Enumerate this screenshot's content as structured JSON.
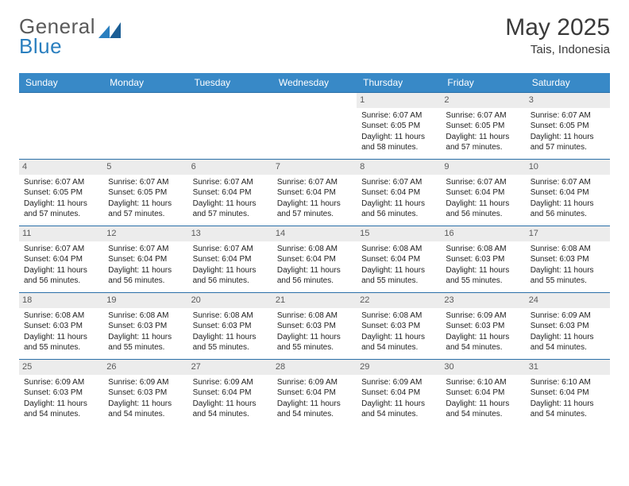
{
  "logo": {
    "text1": "General",
    "text2": "Blue"
  },
  "title": "May 2025",
  "location": "Tais, Indonesia",
  "colors": {
    "header_bg": "#3889c7",
    "header_text": "#ffffff",
    "daynum_bg": "#ececec",
    "border": "#2a6fa8",
    "body_text": "#222222",
    "logo_gray": "#5a5a5a",
    "logo_blue": "#2a7fbf"
  },
  "dow": [
    "Sunday",
    "Monday",
    "Tuesday",
    "Wednesday",
    "Thursday",
    "Friday",
    "Saturday"
  ],
  "weeks": [
    [
      {
        "n": "",
        "sr": "",
        "ss": "",
        "dl": ""
      },
      {
        "n": "",
        "sr": "",
        "ss": "",
        "dl": ""
      },
      {
        "n": "",
        "sr": "",
        "ss": "",
        "dl": ""
      },
      {
        "n": "",
        "sr": "",
        "ss": "",
        "dl": ""
      },
      {
        "n": "1",
        "sr": "6:07 AM",
        "ss": "6:05 PM",
        "dl": "11 hours and 58 minutes."
      },
      {
        "n": "2",
        "sr": "6:07 AM",
        "ss": "6:05 PM",
        "dl": "11 hours and 57 minutes."
      },
      {
        "n": "3",
        "sr": "6:07 AM",
        "ss": "6:05 PM",
        "dl": "11 hours and 57 minutes."
      }
    ],
    [
      {
        "n": "4",
        "sr": "6:07 AM",
        "ss": "6:05 PM",
        "dl": "11 hours and 57 minutes."
      },
      {
        "n": "5",
        "sr": "6:07 AM",
        "ss": "6:05 PM",
        "dl": "11 hours and 57 minutes."
      },
      {
        "n": "6",
        "sr": "6:07 AM",
        "ss": "6:04 PM",
        "dl": "11 hours and 57 minutes."
      },
      {
        "n": "7",
        "sr": "6:07 AM",
        "ss": "6:04 PM",
        "dl": "11 hours and 57 minutes."
      },
      {
        "n": "8",
        "sr": "6:07 AM",
        "ss": "6:04 PM",
        "dl": "11 hours and 56 minutes."
      },
      {
        "n": "9",
        "sr": "6:07 AM",
        "ss": "6:04 PM",
        "dl": "11 hours and 56 minutes."
      },
      {
        "n": "10",
        "sr": "6:07 AM",
        "ss": "6:04 PM",
        "dl": "11 hours and 56 minutes."
      }
    ],
    [
      {
        "n": "11",
        "sr": "6:07 AM",
        "ss": "6:04 PM",
        "dl": "11 hours and 56 minutes."
      },
      {
        "n": "12",
        "sr": "6:07 AM",
        "ss": "6:04 PM",
        "dl": "11 hours and 56 minutes."
      },
      {
        "n": "13",
        "sr": "6:07 AM",
        "ss": "6:04 PM",
        "dl": "11 hours and 56 minutes."
      },
      {
        "n": "14",
        "sr": "6:08 AM",
        "ss": "6:04 PM",
        "dl": "11 hours and 56 minutes."
      },
      {
        "n": "15",
        "sr": "6:08 AM",
        "ss": "6:04 PM",
        "dl": "11 hours and 55 minutes."
      },
      {
        "n": "16",
        "sr": "6:08 AM",
        "ss": "6:03 PM",
        "dl": "11 hours and 55 minutes."
      },
      {
        "n": "17",
        "sr": "6:08 AM",
        "ss": "6:03 PM",
        "dl": "11 hours and 55 minutes."
      }
    ],
    [
      {
        "n": "18",
        "sr": "6:08 AM",
        "ss": "6:03 PM",
        "dl": "11 hours and 55 minutes."
      },
      {
        "n": "19",
        "sr": "6:08 AM",
        "ss": "6:03 PM",
        "dl": "11 hours and 55 minutes."
      },
      {
        "n": "20",
        "sr": "6:08 AM",
        "ss": "6:03 PM",
        "dl": "11 hours and 55 minutes."
      },
      {
        "n": "21",
        "sr": "6:08 AM",
        "ss": "6:03 PM",
        "dl": "11 hours and 55 minutes."
      },
      {
        "n": "22",
        "sr": "6:08 AM",
        "ss": "6:03 PM",
        "dl": "11 hours and 54 minutes."
      },
      {
        "n": "23",
        "sr": "6:09 AM",
        "ss": "6:03 PM",
        "dl": "11 hours and 54 minutes."
      },
      {
        "n": "24",
        "sr": "6:09 AM",
        "ss": "6:03 PM",
        "dl": "11 hours and 54 minutes."
      }
    ],
    [
      {
        "n": "25",
        "sr": "6:09 AM",
        "ss": "6:03 PM",
        "dl": "11 hours and 54 minutes."
      },
      {
        "n": "26",
        "sr": "6:09 AM",
        "ss": "6:03 PM",
        "dl": "11 hours and 54 minutes."
      },
      {
        "n": "27",
        "sr": "6:09 AM",
        "ss": "6:04 PM",
        "dl": "11 hours and 54 minutes."
      },
      {
        "n": "28",
        "sr": "6:09 AM",
        "ss": "6:04 PM",
        "dl": "11 hours and 54 minutes."
      },
      {
        "n": "29",
        "sr": "6:09 AM",
        "ss": "6:04 PM",
        "dl": "11 hours and 54 minutes."
      },
      {
        "n": "30",
        "sr": "6:10 AM",
        "ss": "6:04 PM",
        "dl": "11 hours and 54 minutes."
      },
      {
        "n": "31",
        "sr": "6:10 AM",
        "ss": "6:04 PM",
        "dl": "11 hours and 54 minutes."
      }
    ]
  ],
  "labels": {
    "sunrise": "Sunrise: ",
    "sunset": "Sunset: ",
    "daylight": "Daylight: "
  }
}
